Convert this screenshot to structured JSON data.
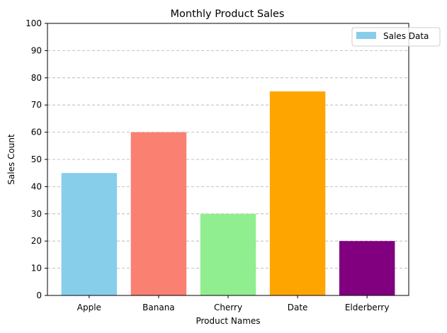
{
  "chart_data": {
    "type": "bar",
    "title": "Monthly Product Sales",
    "xlabel": "Product Names",
    "ylabel": "Sales Count",
    "categories": [
      "Apple",
      "Banana",
      "Cherry",
      "Date",
      "Elderberry"
    ],
    "values": [
      45,
      60,
      30,
      75,
      20
    ],
    "colors": [
      "#87ceeb",
      "#fa8072",
      "#90ee90",
      "#ffa500",
      "#800080"
    ],
    "ylim": [
      0,
      100
    ],
    "yticks": [
      "0",
      "10",
      "20",
      "30",
      "40",
      "50",
      "60",
      "70",
      "80",
      "90",
      "100"
    ],
    "grid": "y-dashed",
    "legend": {
      "label": "Sales Data",
      "color": "#87ceeb",
      "placement": "top-right"
    }
  }
}
